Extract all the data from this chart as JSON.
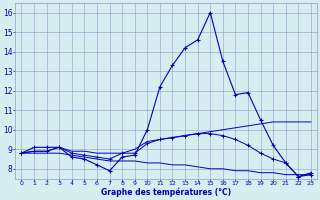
{
  "hours": [
    0,
    1,
    2,
    3,
    4,
    5,
    6,
    7,
    8,
    9,
    10,
    11,
    12,
    13,
    14,
    15,
    16,
    17,
    18,
    19,
    20,
    21,
    22,
    23
  ],
  "temp_main": [
    8.8,
    9.1,
    9.1,
    9.1,
    8.6,
    8.5,
    8.2,
    7.9,
    8.6,
    8.7,
    10.0,
    12.2,
    13.3,
    14.2,
    14.6,
    16.0,
    13.5,
    11.8,
    11.9,
    10.5,
    9.2,
    8.3,
    7.6,
    7.7
  ],
  "temp_line2": [
    8.8,
    8.9,
    8.9,
    9.1,
    8.9,
    8.9,
    8.8,
    8.8,
    8.8,
    9.0,
    9.4,
    9.5,
    9.6,
    9.7,
    9.8,
    9.9,
    10.0,
    10.1,
    10.2,
    10.3,
    10.4,
    10.4,
    10.4,
    10.4
  ],
  "temp_line3": [
    8.8,
    8.8,
    8.8,
    8.8,
    8.7,
    8.6,
    8.5,
    8.4,
    8.4,
    8.4,
    8.3,
    8.3,
    8.2,
    8.2,
    8.1,
    8.0,
    8.0,
    7.9,
    7.9,
    7.8,
    7.8,
    7.7,
    7.7,
    7.7
  ],
  "temp_line4": [
    8.8,
    8.9,
    8.9,
    9.1,
    8.8,
    8.7,
    8.6,
    8.5,
    8.8,
    8.8,
    9.3,
    9.5,
    9.6,
    9.7,
    9.8,
    9.8,
    9.7,
    9.5,
    9.2,
    8.8,
    8.5,
    8.3,
    7.6,
    7.8
  ],
  "line_color": "#0000bb",
  "bg_color": "#d6eef0",
  "grid_color": "#9999cc",
  "xlabel": "Graphe des températures (°C)",
  "ylim": [
    7.5,
    16.5
  ],
  "xlim": [
    -0.5,
    23.5
  ],
  "yticks": [
    8,
    9,
    10,
    11,
    12,
    13,
    14,
    15,
    16
  ],
  "xticks": [
    0,
    1,
    2,
    3,
    4,
    5,
    6,
    7,
    8,
    9,
    10,
    11,
    12,
    13,
    14,
    15,
    16,
    17,
    18,
    19,
    20,
    21,
    22,
    23
  ]
}
